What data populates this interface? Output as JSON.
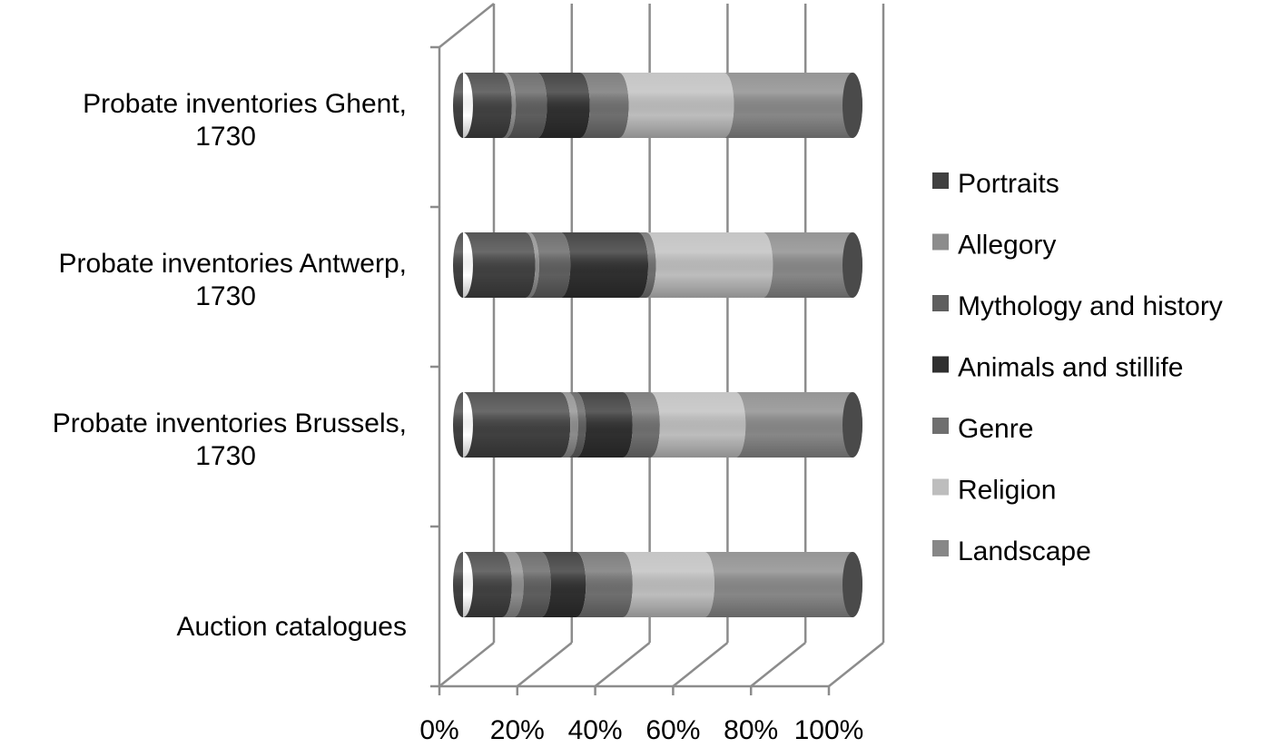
{
  "chart_data": {
    "type": "bar",
    "orientation": "horizontal",
    "stacked": "percent",
    "style_3d": "cylinder",
    "categories": [
      "Probate inventories Ghent, 1730",
      "Probate inventories Antwerp, 1730",
      "Probate inventories Brussels, 1730",
      "Auction catalogues"
    ],
    "category_labels": [
      [
        "Probate inventories Ghent,",
        "1730"
      ],
      [
        "Probate inventories Antwerp,",
        "1730"
      ],
      [
        "Probate inventories Brussels,",
        "1730"
      ],
      [
        "Auction catalogues"
      ]
    ],
    "series": [
      {
        "name": "Portraits",
        "values": [
          10,
          16,
          25,
          10
        ],
        "color": "#404040"
      },
      {
        "name": "Allegory",
        "values": [
          1,
          1,
          2,
          3
        ],
        "color": "#8c8c8c"
      },
      {
        "name": "Mythology and history",
        "values": [
          8,
          8,
          2,
          7
        ],
        "color": "#5e5e5e"
      },
      {
        "name": "Animals and stillife",
        "values": [
          11,
          20,
          12,
          9
        ],
        "color": "#2f2f2f"
      },
      {
        "name": "Genre",
        "values": [
          10,
          2,
          7,
          12
        ],
        "color": "#6f6f6f"
      },
      {
        "name": "Religion",
        "values": [
          27,
          30,
          22,
          21
        ],
        "color": "#bdbdbd"
      },
      {
        "name": "Landscape",
        "values": [
          33,
          23,
          30,
          38
        ],
        "color": "#878787"
      }
    ],
    "x_ticks": [
      "0%",
      "20%",
      "40%",
      "60%",
      "80%",
      "100%"
    ],
    "xlim": [
      0,
      100
    ],
    "grid": true,
    "legend_position": "right"
  }
}
